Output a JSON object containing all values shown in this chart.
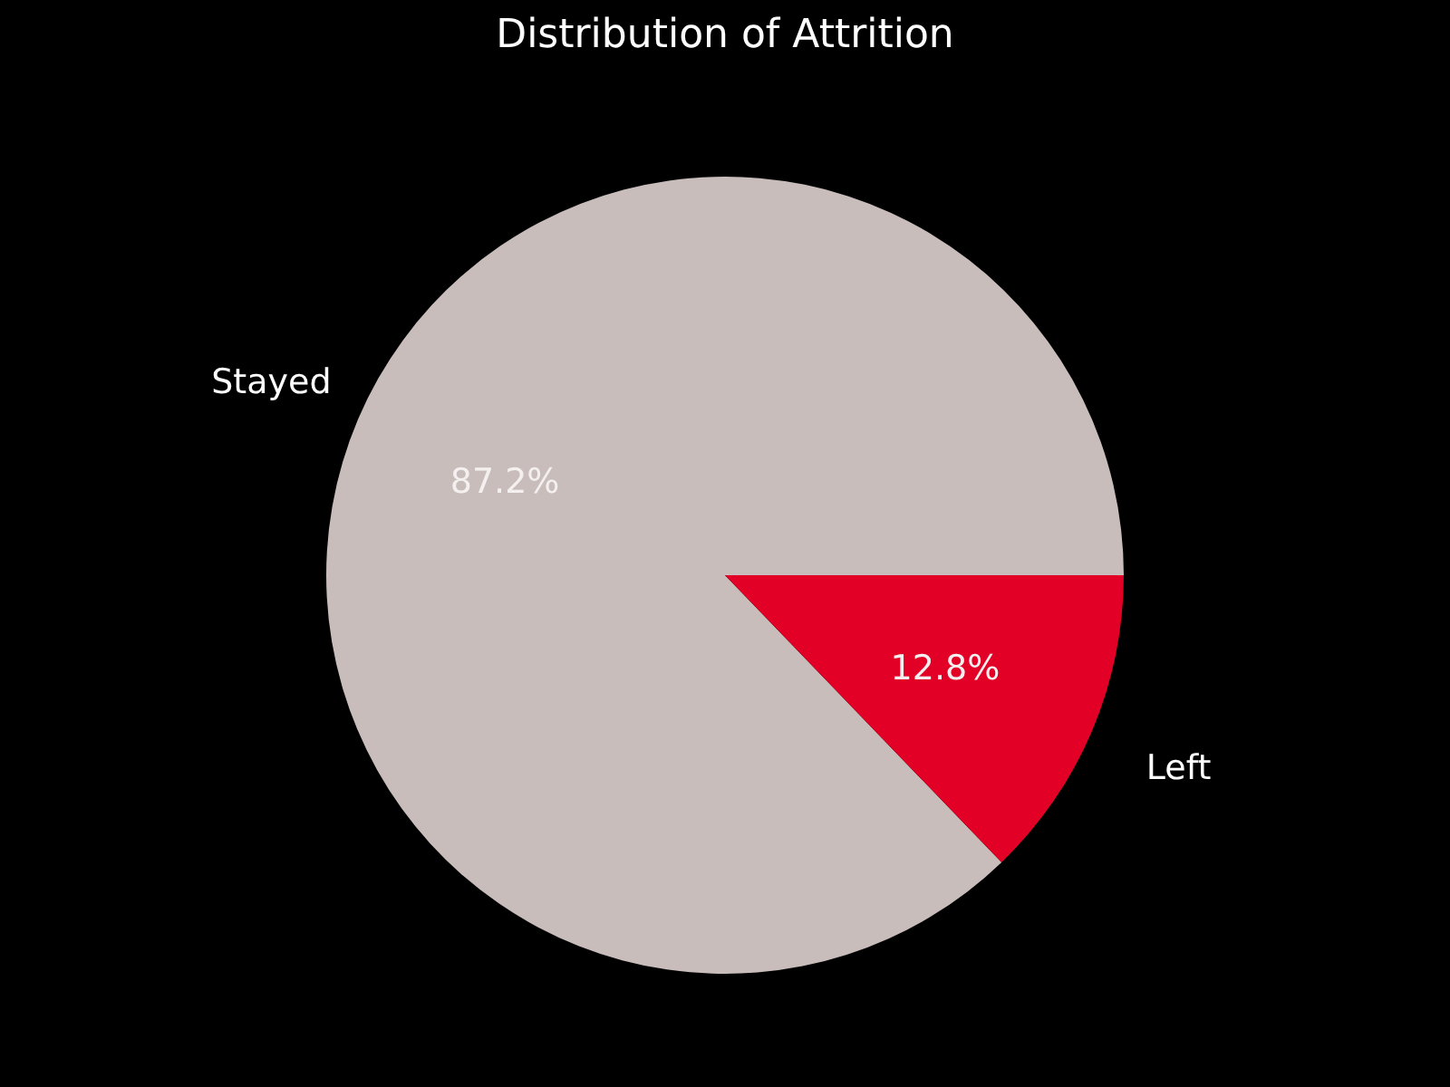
{
  "chart_data": {
    "type": "pie",
    "title": "Distribution of Attrition",
    "categories": [
      "Stayed",
      "Left"
    ],
    "values": [
      87.2,
      12.8
    ],
    "colors": [
      "#c9bdbc",
      "#e30027"
    ],
    "value_labels": [
      "87.2%",
      "12.8%"
    ]
  }
}
